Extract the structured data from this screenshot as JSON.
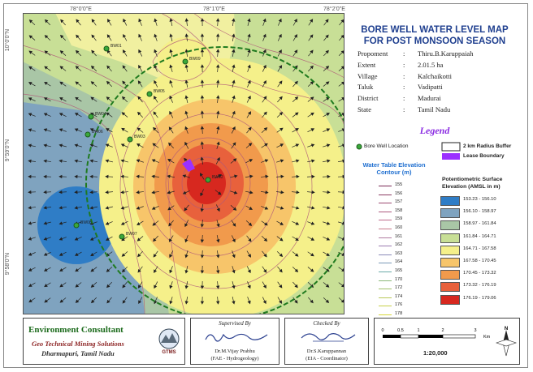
{
  "map": {
    "title_line1": "BORE WELL WATER LEVEL MAP",
    "title_line2": "FOR POST MONSOON SEASON",
    "coords_top": [
      "78°0'0\"E",
      "78°1'0\"E",
      "78°2'0\"E"
    ],
    "coords_left": [
      "10°0'0\"N",
      "9°59'0\"N",
      "9°58'0\"N"
    ],
    "wells": [
      {
        "label": "BW01",
        "depth": 0.5
      },
      {
        "label": "BW02",
        "depth": 0.5
      },
      {
        "label": "BW03",
        "depth": 0.5
      },
      {
        "label": "BW04",
        "depth": 0.5
      },
      {
        "label": "BW05",
        "depth": 0.5
      },
      {
        "label": "BW06",
        "depth": 0.5
      },
      {
        "label": "BW07",
        "depth": 0.5
      },
      {
        "label": "BW08",
        "depth": 0.5
      },
      {
        "label": "BW09",
        "depth": 0.5
      }
    ],
    "colors": {
      "c1": "#2f7dc6",
      "c2": "#7fa3bf",
      "c3": "#a9c6a6",
      "c4": "#c8df96",
      "c5": "#f5f08a",
      "c6": "#f7c56a",
      "c7": "#f19a4c",
      "c8": "#e8613c",
      "c9": "#d7281f",
      "buffer": "#1f7a1f",
      "lease": "#9b30ff",
      "contour": "#b0587a"
    }
  },
  "info": [
    {
      "key": "Propoment",
      "val": "Thiru.B.Karuppaiah"
    },
    {
      "key": "Extent",
      "val": "2.01.5 ha"
    },
    {
      "key": "Village",
      "val": "Kalchaikotti"
    },
    {
      "key": "Taluk",
      "val": "Vadipatti"
    },
    {
      "key": "District",
      "val": "Madurai"
    },
    {
      "key": "State",
      "val": "Tamil Nadu"
    }
  ],
  "legend": {
    "title": "Legend",
    "borewell": "Bore Well Location",
    "buffer": "2 km Radius Buffer",
    "lease": "Lease Boundary",
    "wt_title_1": "Water Table Elevation",
    "wt_title_2": "Contour (m)",
    "contours": [
      "155",
      "156",
      "157",
      "158",
      "159",
      "160",
      "161",
      "162",
      "163",
      "164",
      "165",
      "170",
      "172",
      "174",
      "176",
      "178"
    ],
    "pot_title_1": "Potentiometric Surface",
    "pot_title_2": "Elevation (AMSL in m)",
    "pot_ranges": [
      "153.23 - 156.10",
      "156.10 - 158.97",
      "158.97 - 161.84",
      "161.84 - 164.71",
      "164.71 - 167.58",
      "167.58 - 170.45",
      "170.45 - 173.32",
      "173.32 - 176.19",
      "176.19 - 179.06"
    ]
  },
  "footer": {
    "consultant_title": "Environment Consultant",
    "consultant_name": "Geo Technical Mining Solutions",
    "consultant_loc": "Dharmapuri, Tamil Nadu",
    "logo_text": "GTMS",
    "supervised_head": "Supervised By",
    "supervised_name": "Dr.M.Vijay Prabhu",
    "supervised_role": "(FAE - Hydrogeology)",
    "checked_head": "Checked By",
    "checked_name": "Dr.S.Karuppannan",
    "checked_role": "(EIA - Coordinator)",
    "scale_ticks": [
      "0",
      "0.5",
      "1",
      "2",
      "3"
    ],
    "scale_unit": "Km",
    "scale_ratio": "1:20,000",
    "north_label": "N"
  }
}
